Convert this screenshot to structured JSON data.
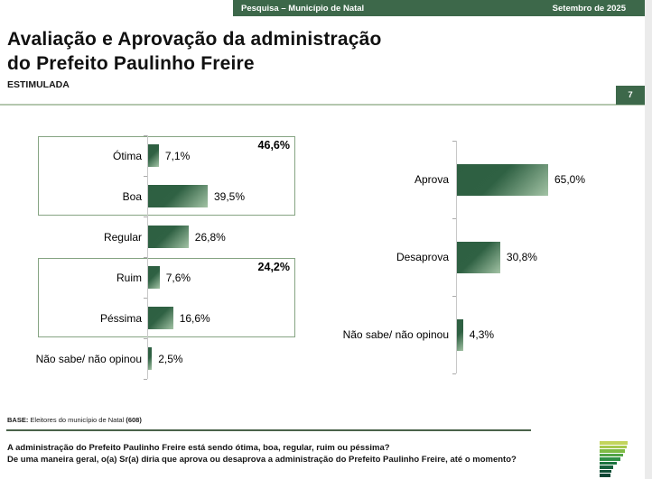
{
  "header": {
    "left": "Pesquisa – Município de Natal",
    "right": "Setembro de 2025"
  },
  "title": {
    "line1": "Avaliação e Aprovação da administração",
    "line2": "do Prefeito Paulinho Freire",
    "subtitle": "ESTIMULADA"
  },
  "page_number": "7",
  "colors": {
    "accent_green": "#3d684a",
    "bar_dark": "#2d5f41",
    "bar_light": "#a3c3a5",
    "group_box_border": "#86a483",
    "title_rule": "#b4c7ae",
    "footer_rule": "#4a624a",
    "axis": "#c8c8c8"
  },
  "chart_data": [
    {
      "type": "bar",
      "orientation": "horizontal",
      "title": "Avaliação da administração (estimulada)",
      "categories": [
        "Ótima",
        "Boa",
        "Regular",
        "Ruim",
        "Péssima",
        "Não sabe/ não opinou"
      ],
      "values": [
        7.1,
        39.5,
        26.8,
        7.6,
        16.6,
        2.5
      ],
      "value_labels": [
        "7,1%",
        "39,5%",
        "26,8%",
        "7,6%",
        "16,6%",
        "2,5%"
      ],
      "xlim": [
        0,
        100
      ],
      "grid": false,
      "legend": false,
      "groups": [
        {
          "label": "46,6%",
          "from": 0,
          "to": 1
        },
        {
          "label": "24,2%",
          "from": 3,
          "to": 4
        }
      ]
    },
    {
      "type": "bar",
      "orientation": "horizontal",
      "title": "Aprovação da administração",
      "categories": [
        "Aprova",
        "Desaprova",
        "Não sabe/ não opinou"
      ],
      "values": [
        65.0,
        30.8,
        4.3
      ],
      "value_labels": [
        "65,0%",
        "30,8%",
        "4,3%"
      ],
      "xlim": [
        0,
        100
      ],
      "grid": false,
      "legend": false,
      "groups": []
    }
  ],
  "footer": {
    "base_label": "BASE:",
    "base_text": " Eleitores do município de Natal ",
    "base_count": "(608)",
    "question1": "A administração do Prefeito Paulinho Freire está sendo ótima, boa, regular, ruim ou péssima?",
    "question2": "De uma maneira geral, o(a) Sr(a) diria que aprova ou desaprova a administração do Prefeito Paulinho Freire, até o momento?"
  },
  "logo": {
    "name": "perfil-pesquisa-logo",
    "bars": [
      {
        "w": 31,
        "c": "#c3d45c"
      },
      {
        "w": 30,
        "c": "#a6c94e"
      },
      {
        "w": 28,
        "c": "#7fbb45"
      },
      {
        "w": 26,
        "c": "#53a447"
      },
      {
        "w": 23,
        "c": "#2f8f45"
      },
      {
        "w": 19,
        "c": "#1d7440"
      },
      {
        "w": 15,
        "c": "#17603c"
      },
      {
        "w": 13,
        "c": "#115038"
      },
      {
        "w": 12,
        "c": "#0d4434"
      }
    ]
  }
}
